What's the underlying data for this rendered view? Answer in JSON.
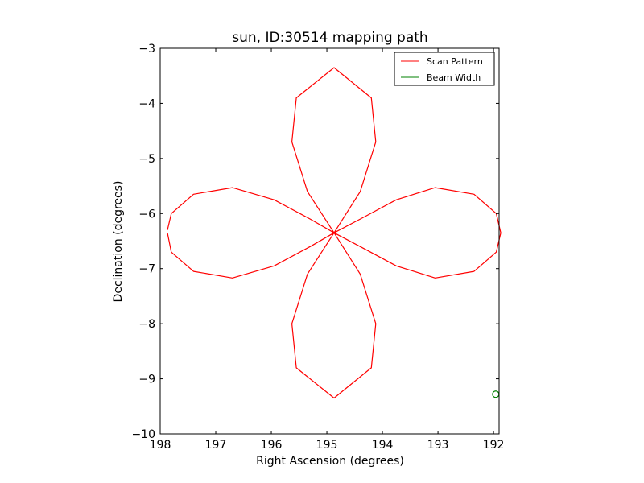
{
  "chart_data": {
    "type": "line",
    "title": "sun, ID:30514 mapping path",
    "xlabel": "Right Ascension (degrees)",
    "ylabel": "Declination (degrees)",
    "xlim": [
      198,
      191.9
    ],
    "ylim": [
      -10,
      -3
    ],
    "x_inverted": true,
    "x_ticks": [
      198,
      197,
      196,
      195,
      194,
      193,
      192
    ],
    "y_ticks": [
      -3,
      -4,
      -5,
      -6,
      -7,
      -8,
      -9,
      -10
    ],
    "x_tick_labels": [
      "198",
      "197",
      "196",
      "195",
      "194",
      "193",
      "192"
    ],
    "y_tick_labels": [
      "−3",
      "−4",
      "−5",
      "−6",
      "−7",
      "−8",
      "−9",
      "−10"
    ],
    "grid": false,
    "legend_position": "top-right",
    "series": [
      {
        "name": "Scan Pattern",
        "color": "#ff0000",
        "curve": "four-petal rose",
        "center": [
          194.87,
          -6.35
        ],
        "radius": 3.0,
        "points": [
          [
            197.87,
            -6.35
          ],
          [
            197.8,
            -6.7
          ],
          [
            197.4,
            -7.05
          ],
          [
            196.7,
            -7.17
          ],
          [
            195.95,
            -6.95
          ],
          [
            195.3,
            -6.6
          ],
          [
            194.87,
            -6.35
          ],
          [
            195.35,
            -7.1
          ],
          [
            195.63,
            -8.0
          ],
          [
            195.55,
            -8.8
          ],
          [
            194.87,
            -9.35
          ],
          [
            194.2,
            -8.8
          ],
          [
            194.12,
            -8.0
          ],
          [
            194.4,
            -7.1
          ],
          [
            194.87,
            -6.35
          ],
          [
            194.4,
            -6.6
          ],
          [
            193.75,
            -6.95
          ],
          [
            193.05,
            -7.17
          ],
          [
            192.35,
            -7.05
          ],
          [
            191.95,
            -6.7
          ],
          [
            191.87,
            -6.35
          ],
          [
            191.95,
            -6.0
          ],
          [
            192.35,
            -5.65
          ],
          [
            193.05,
            -5.53
          ],
          [
            193.75,
            -5.75
          ],
          [
            194.4,
            -6.1
          ],
          [
            194.87,
            -6.35
          ],
          [
            194.4,
            -5.6
          ],
          [
            194.12,
            -4.7
          ],
          [
            194.2,
            -3.9
          ],
          [
            194.87,
            -3.35
          ],
          [
            195.55,
            -3.9
          ],
          [
            195.63,
            -4.7
          ],
          [
            195.35,
            -5.6
          ],
          [
            194.87,
            -6.35
          ],
          [
            195.3,
            -6.1
          ],
          [
            195.95,
            -5.75
          ],
          [
            196.7,
            -5.53
          ],
          [
            197.4,
            -5.65
          ],
          [
            197.8,
            -6.0
          ],
          [
            197.87,
            -6.3
          ]
        ]
      },
      {
        "name": "Beam Width",
        "color": "#008000",
        "marker": "circle",
        "points": [
          [
            191.96,
            -9.28
          ]
        ]
      }
    ]
  }
}
